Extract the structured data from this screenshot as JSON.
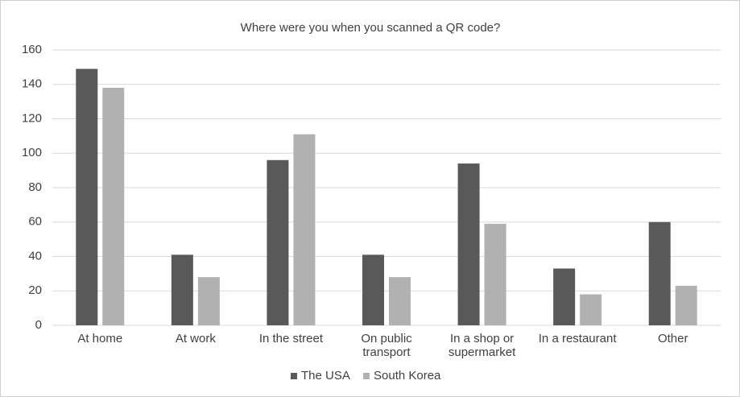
{
  "chart_data": {
    "type": "bar",
    "title": "Where were you when you scanned a QR code?",
    "categories": [
      "At home",
      "At work",
      "In the street",
      "On public transport",
      "In a shop or supermarket",
      "In a restaurant",
      "Other"
    ],
    "series": [
      {
        "name": "The USA",
        "color": "#595959",
        "values": [
          149,
          41,
          96,
          41,
          94,
          33,
          60
        ]
      },
      {
        "name": "South Korea",
        "color": "#b1b1b2",
        "values": [
          138,
          28,
          111,
          28,
          59,
          18,
          23
        ]
      }
    ],
    "ylim": [
      0,
      160
    ],
    "yticks": [
      0,
      20,
      40,
      60,
      80,
      100,
      120,
      140,
      160
    ],
    "grid": true,
    "legend": "bottom"
  }
}
